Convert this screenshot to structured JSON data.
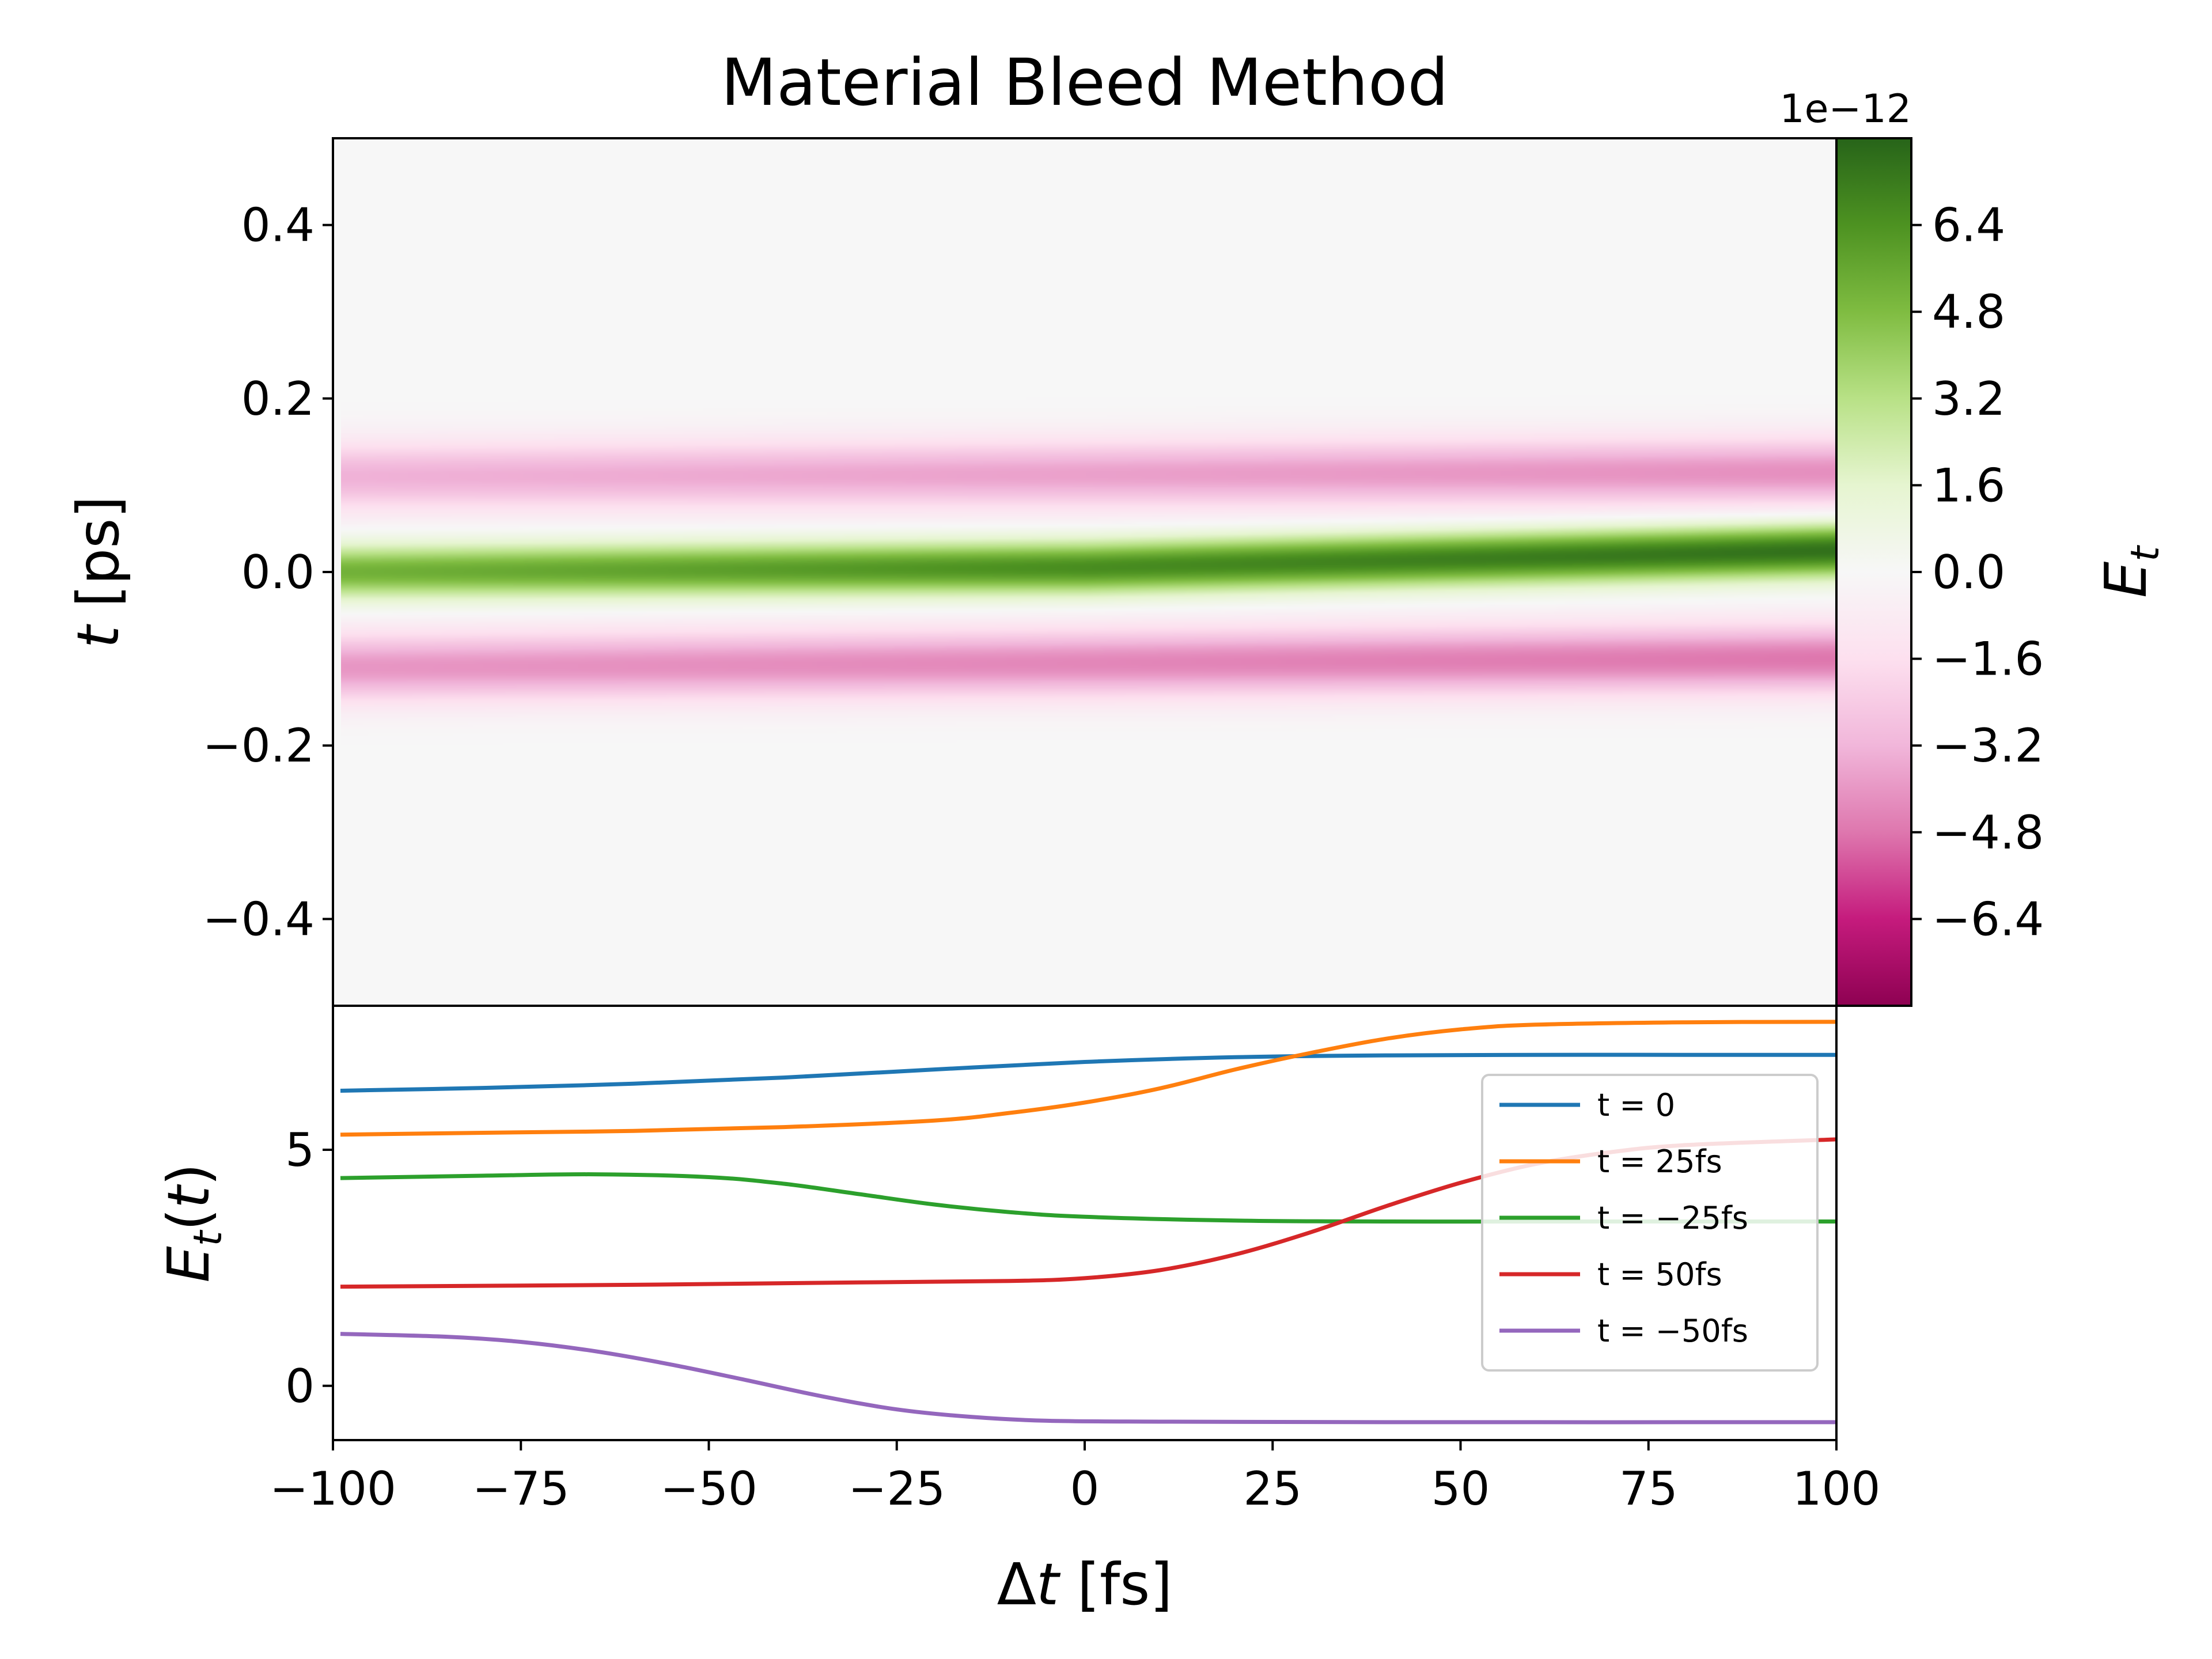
{
  "chart_data": [
    {
      "type": "heatmap",
      "title": "Material Bleed Method",
      "xlim": [
        -100,
        100
      ],
      "ylim": [
        -0.5,
        0.5
      ],
      "ylabel": "t [ps]",
      "yticks": [
        0.4,
        0.2,
        0.0,
        -0.2,
        -0.4
      ],
      "ytick_labels": [
        "0.4",
        "0.2",
        "0.0",
        "−0.2",
        "−0.4"
      ],
      "colormap": "PiYG",
      "colorbar": {
        "label": "E_t",
        "offset_text": "1e−12",
        "range": [
          -8.0,
          8.0
        ],
        "ticks": [
          6.4,
          4.8,
          3.2,
          1.6,
          0.0,
          -1.6,
          -3.2,
          -4.8,
          -6.4
        ],
        "tick_labels": [
          "6.4",
          "4.8",
          "3.2",
          "1.6",
          "0.0",
          "−1.6",
          "−3.2",
          "−4.8",
          "−6.4"
        ]
      },
      "features": [
        {
          "feature": "positive band",
          "t_center_at_dt": [
            [
              -100,
              0.0
            ],
            [
              0,
              0.005
            ],
            [
              100,
              0.025
            ]
          ],
          "peak_at_dt": [
            [
              -100,
              5.2
            ],
            [
              0,
              6.6
            ],
            [
              100,
              7.6
            ]
          ]
        },
        {
          "feature": "negative band above",
          "t_center_at_dt": [
            [
              -100,
              0.11
            ],
            [
              100,
              0.115
            ]
          ],
          "peak_at_dt": [
            [
              -100,
              -3.3
            ],
            [
              100,
              -4.2
            ]
          ]
        },
        {
          "feature": "negative band below",
          "t_center_at_dt": [
            [
              -100,
              -0.11
            ],
            [
              100,
              -0.1
            ]
          ],
          "peak_at_dt": [
            [
              -100,
              -4.0
            ],
            [
              100,
              -4.8
            ]
          ]
        }
      ]
    },
    {
      "type": "line",
      "xlabel": "Δt [fs]",
      "ylabel": "E_t(t)",
      "xlim": [
        -100,
        100
      ],
      "ylim": [
        -1.15,
        8.05
      ],
      "xticks": [
        -100,
        -75,
        -50,
        -25,
        0,
        25,
        50,
        75,
        100
      ],
      "xtick_labels": [
        "−100",
        "−75",
        "−50",
        "−25",
        "0",
        "25",
        "50",
        "75",
        "100"
      ],
      "yticks": [
        5,
        0
      ],
      "ytick_labels": [
        "5",
        "0"
      ],
      "legend": "upper-right",
      "series": [
        {
          "name": "t = 0",
          "color": "#1f77b4",
          "x": [
            -99,
            -80,
            -60,
            -40,
            -20,
            0,
            20,
            40,
            60,
            80,
            100
          ],
          "y": [
            6.25,
            6.31,
            6.4,
            6.53,
            6.7,
            6.86,
            6.96,
            7.0,
            7.01,
            7.01,
            7.01
          ]
        },
        {
          "name": "t = 25fs",
          "color": "#ff7f0e",
          "x": [
            -99,
            -80,
            -60,
            -40,
            -20,
            -10,
            0,
            10,
            20,
            30,
            40,
            50,
            60,
            80,
            100
          ],
          "y": [
            5.32,
            5.36,
            5.4,
            5.48,
            5.62,
            5.78,
            6.0,
            6.3,
            6.7,
            7.05,
            7.35,
            7.55,
            7.65,
            7.7,
            7.71
          ]
        },
        {
          "name": "t = −25fs",
          "color": "#2ca02c",
          "x": [
            -99,
            -80,
            -65,
            -50,
            -40,
            -30,
            -20,
            -10,
            0,
            20,
            40,
            60,
            100
          ],
          "y": [
            4.4,
            4.45,
            4.48,
            4.42,
            4.28,
            4.06,
            3.84,
            3.68,
            3.58,
            3.5,
            3.48,
            3.48,
            3.48
          ]
        },
        {
          "name": "t = 50fs",
          "color": "#d62728",
          "x": [
            -99,
            -60,
            -30,
            -10,
            0,
            10,
            20,
            30,
            40,
            50,
            60,
            70,
            80,
            100
          ],
          "y": [
            2.1,
            2.14,
            2.19,
            2.22,
            2.28,
            2.45,
            2.78,
            3.25,
            3.8,
            4.3,
            4.7,
            4.95,
            5.1,
            5.22
          ]
        },
        {
          "name": "t = −50fs",
          "color": "#9467bd",
          "x": [
            -99,
            -85,
            -75,
            -65,
            -55,
            -45,
            -35,
            -25,
            -15,
            -5,
            10,
            40,
            100
          ],
          "y": [
            1.1,
            1.04,
            0.93,
            0.73,
            0.45,
            0.12,
            -0.22,
            -0.5,
            -0.66,
            -0.74,
            -0.76,
            -0.77,
            -0.77
          ]
        }
      ]
    }
  ]
}
